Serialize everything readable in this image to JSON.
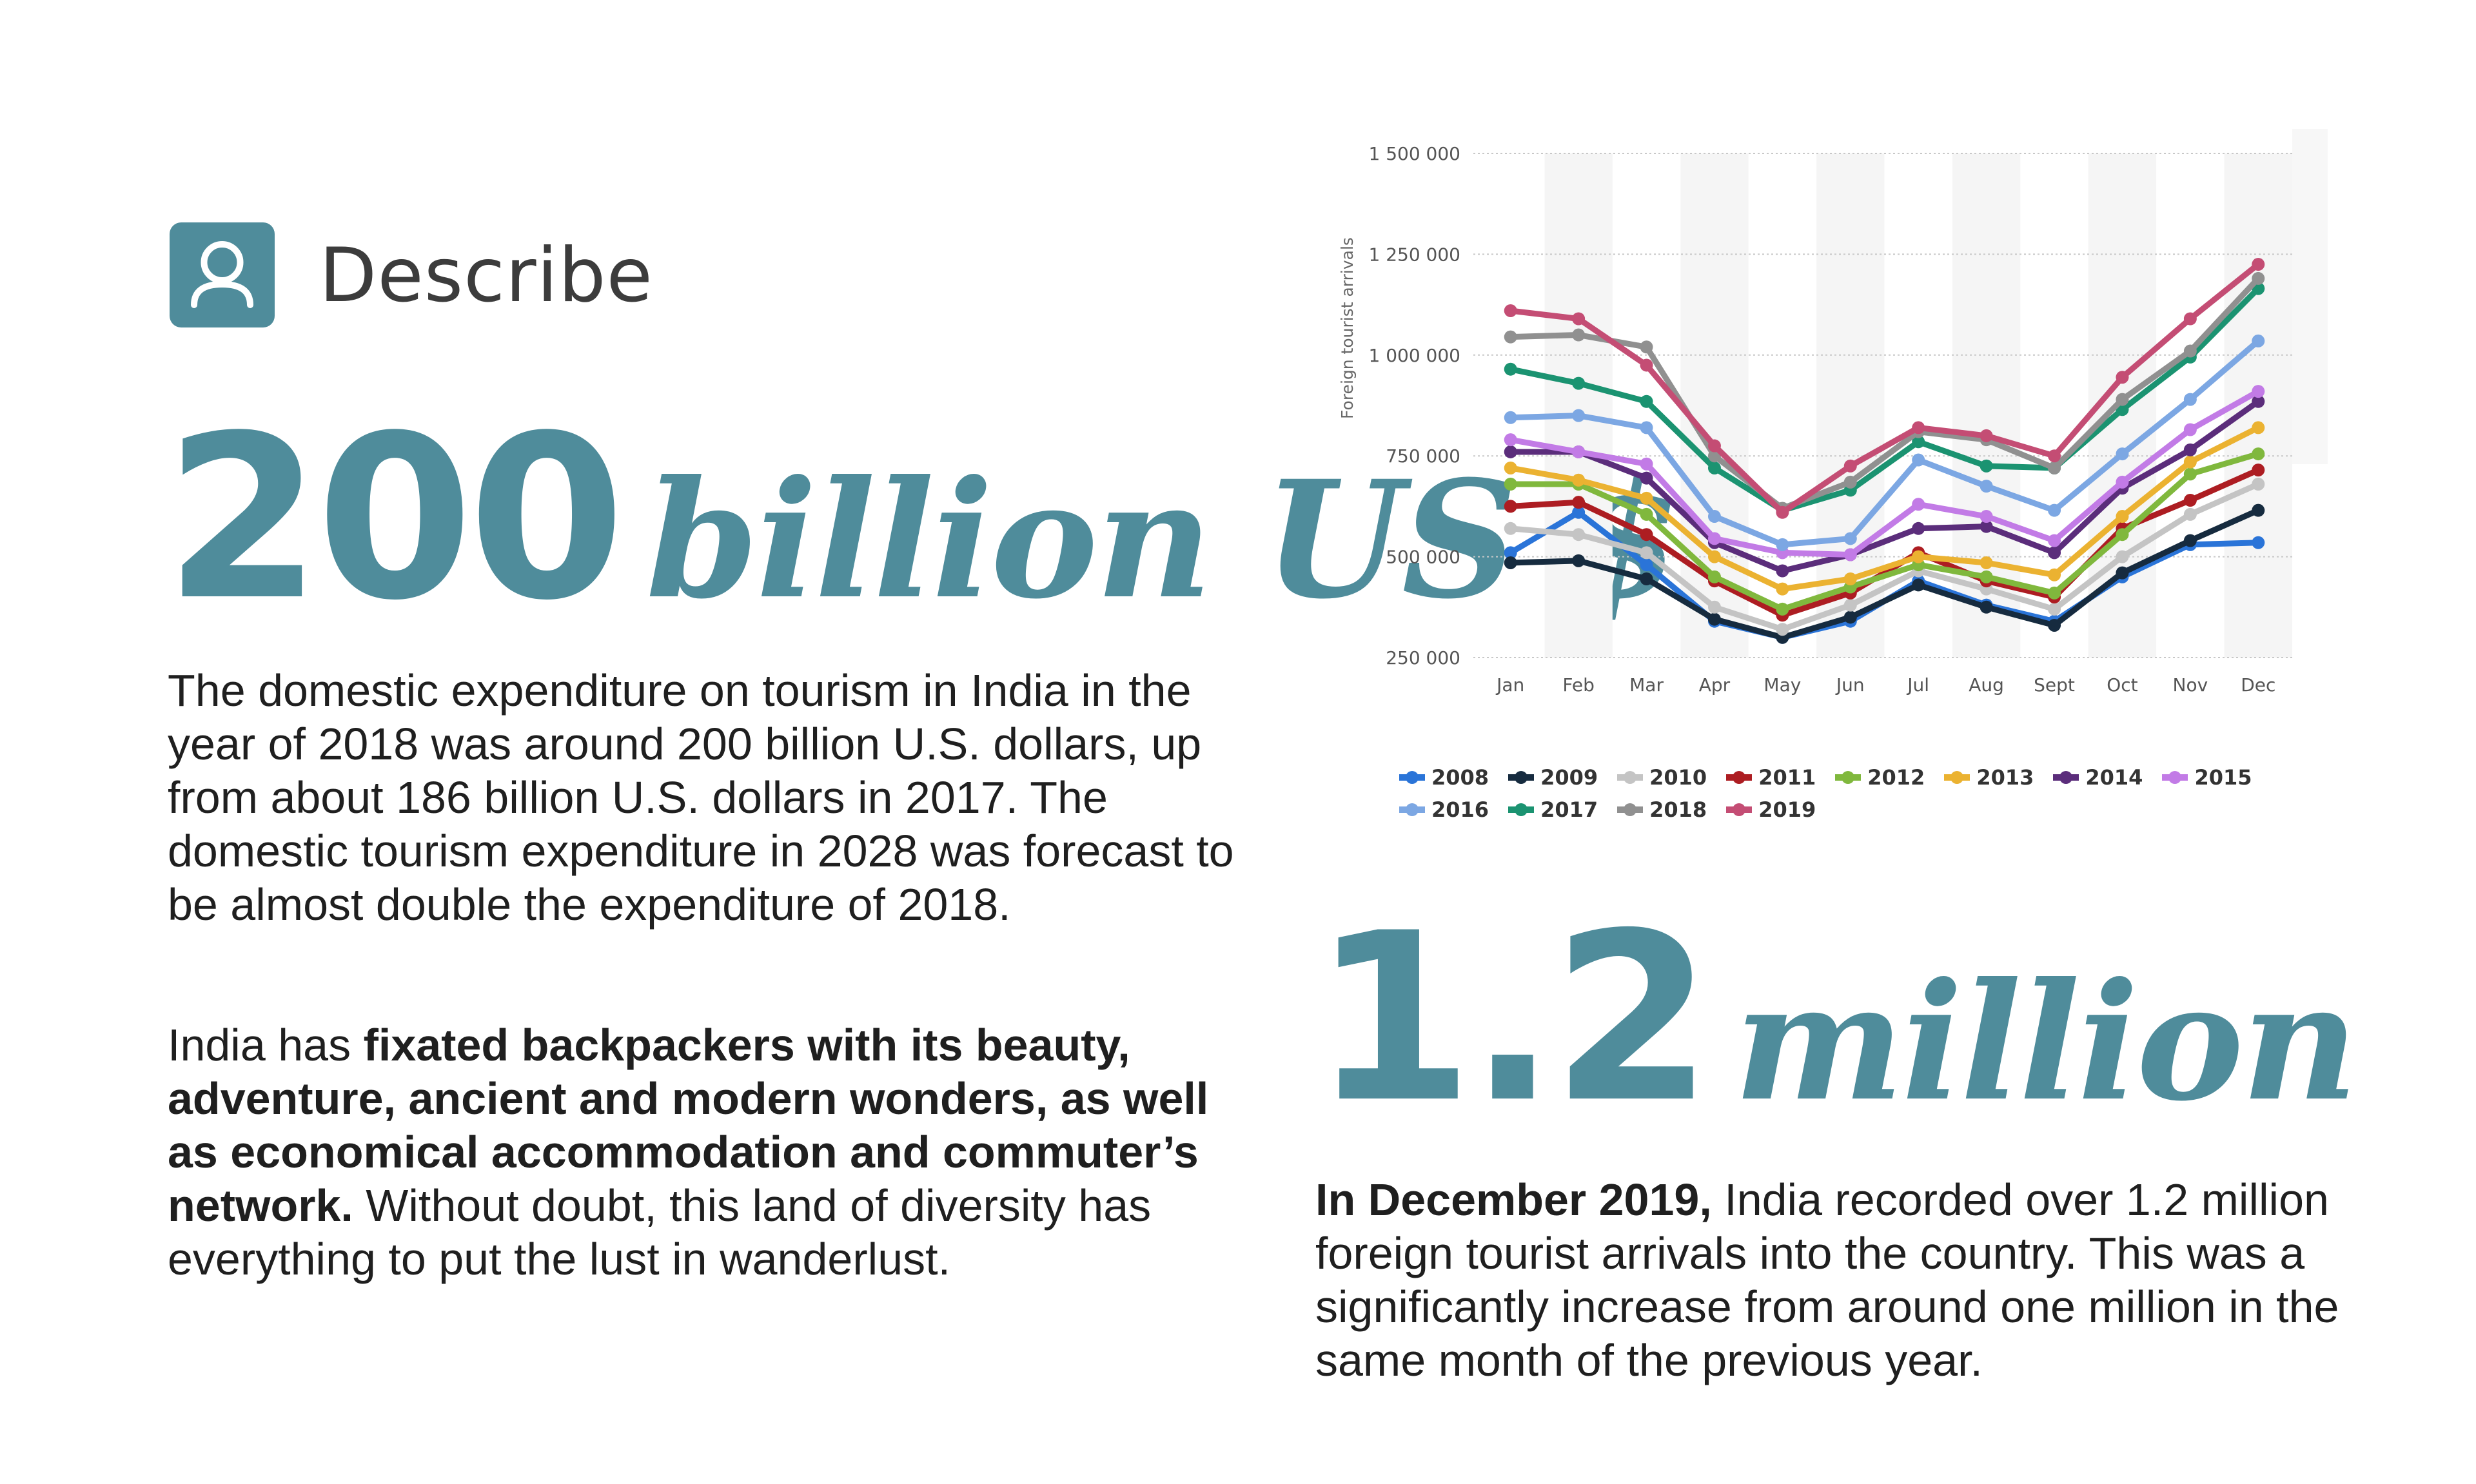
{
  "header": {
    "title": "Describe",
    "icon": "user-icon"
  },
  "left": {
    "big_number": "200",
    "big_word": "billion US $",
    "paragraph1": "The domestic expenditure on tourism in India in the year of 2018 was around 200 billion U.S. dollars, up from about 186 billion U.S. dollars in 2017. The domestic tourism expenditure in 2028 was forecast to be almost double the expenditure of 2018.",
    "paragraph2_lead": "India has ",
    "paragraph2_bold": "fixated backpackers with its beauty, adventure, ancient and modern wonders, as well as economical accommodation and commuter’s network.",
    "paragraph2_tail": " Without doubt, this land of diversity has everything to put the lust in wanderlust."
  },
  "right": {
    "big_number": "1.2",
    "big_word": "million",
    "paragraph_bold": "In December 2019,",
    "paragraph_tail": " India recorded over 1.2 million foreign tourist arrivals into the country. This was a significantly increase from around one million in the same month of the previous year."
  },
  "colors": {
    "accent": "#4f8c9b"
  },
  "chart_data": {
    "type": "line",
    "ylabel": "Foreign tourist arrivals",
    "ylim": [
      250000,
      1500000
    ],
    "yticks": [
      250000,
      500000,
      750000,
      1000000,
      1250000,
      1500000
    ],
    "ytick_labels": [
      "250 000",
      "500 000",
      "750 000",
      "1 000 000",
      "1 250 000",
      "1 500 000"
    ],
    "categories": [
      "Jan",
      "Feb",
      "Mar",
      "Apr",
      "May",
      "Jun",
      "Jul",
      "Aug",
      "Sept",
      "Oct",
      "Nov",
      "Dec"
    ],
    "grid": true,
    "legend_position": "bottom",
    "series": [
      {
        "name": "2008",
        "color": "#2a74d8",
        "values": [
          510000,
          610000,
          480000,
          340000,
          300000,
          340000,
          440000,
          380000,
          340000,
          450000,
          530000,
          535000
        ]
      },
      {
        "name": "2009",
        "color": "#162b3f",
        "values": [
          485000,
          490000,
          445000,
          345000,
          300000,
          350000,
          430000,
          375000,
          330000,
          460000,
          540000,
          615000
        ]
      },
      {
        "name": "2010",
        "color": "#c4c4c4",
        "values": [
          570000,
          555000,
          510000,
          375000,
          320000,
          380000,
          465000,
          420000,
          370000,
          500000,
          605000,
          680000
        ]
      },
      {
        "name": "2011",
        "color": "#ad1d22",
        "values": [
          625000,
          635000,
          555000,
          440000,
          355000,
          410000,
          510000,
          440000,
          400000,
          570000,
          640000,
          715000
        ]
      },
      {
        "name": "2012",
        "color": "#80b83d",
        "values": [
          680000,
          680000,
          605000,
          450000,
          370000,
          425000,
          480000,
          450000,
          410000,
          555000,
          705000,
          755000
        ]
      },
      {
        "name": "2013",
        "color": "#ebb231",
        "values": [
          720000,
          690000,
          645000,
          500000,
          420000,
          445000,
          500000,
          485000,
          455000,
          600000,
          735000,
          820000
        ]
      },
      {
        "name": "2014",
        "color": "#5b2d7b",
        "values": [
          760000,
          760000,
          695000,
          535000,
          465000,
          505000,
          570000,
          575000,
          510000,
          670000,
          765000,
          885000
        ]
      },
      {
        "name": "2015",
        "color": "#c27be6",
        "values": [
          790000,
          760000,
          730000,
          545000,
          510000,
          505000,
          630000,
          600000,
          540000,
          685000,
          815000,
          910000
        ]
      },
      {
        "name": "2016",
        "color": "#7ca7e3",
        "values": [
          845000,
          850000,
          820000,
          600000,
          530000,
          545000,
          740000,
          675000,
          615000,
          755000,
          890000,
          1035000
        ]
      },
      {
        "name": "2017",
        "color": "#1b9371",
        "values": [
          965000,
          930000,
          885000,
          720000,
          615000,
          665000,
          785000,
          725000,
          720000,
          865000,
          995000,
          1165000
        ]
      },
      {
        "name": "2018",
        "color": "#909090",
        "values": [
          1045000,
          1050000,
          1020000,
          750000,
          620000,
          685000,
          810000,
          790000,
          720000,
          890000,
          1010000,
          1190000
        ]
      },
      {
        "name": "2019",
        "color": "#c44d74",
        "values": [
          1110000,
          1090000,
          975000,
          775000,
          610000,
          725000,
          820000,
          800000,
          750000,
          945000,
          1090000,
          1225000
        ]
      }
    ]
  }
}
